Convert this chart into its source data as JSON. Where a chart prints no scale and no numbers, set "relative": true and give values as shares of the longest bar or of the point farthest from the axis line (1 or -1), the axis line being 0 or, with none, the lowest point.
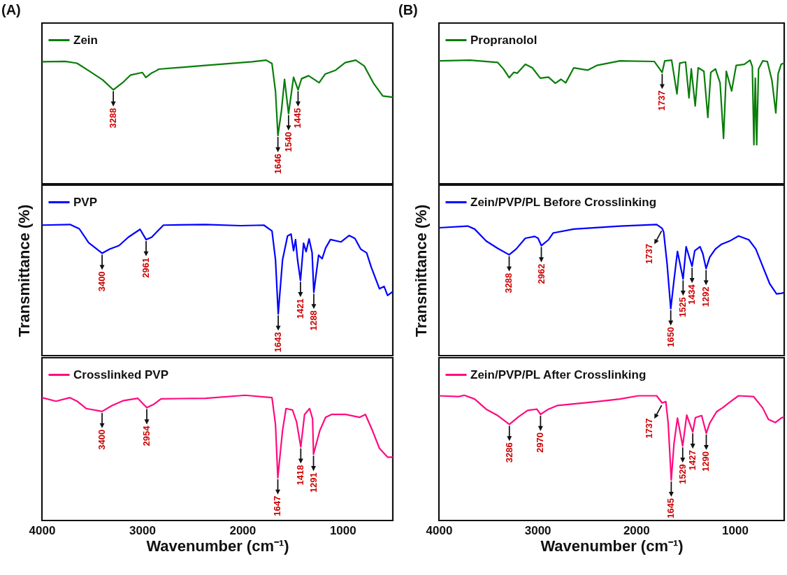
{
  "chart_data": [
    {
      "type": "line",
      "title": "(A)",
      "relative": true,
      "xlim": [
        4000,
        500
      ],
      "tick_labels": false,
      "legend": "top left",
      "x": [
        4000,
        3767,
        3650,
        3534,
        3394,
        3288,
        3185,
        3115,
        2998,
        2963,
        2905,
        2858,
        2835,
        2369,
        1903,
        1763,
        1705,
        1670,
        1646,
        1610,
        1580,
        1540,
        1490,
        1445,
        1410,
        1340,
        1235,
        1175,
        1070,
        975,
        870,
        785,
        690,
        600,
        500
      ],
      "series": [
        {
          "name": "Zein",
          "color": "#0a7d0a",
          "values": [
            0.987,
            0.99,
            0.975,
            0.915,
            0.84,
            0.76,
            0.825,
            0.88,
            0.9,
            0.86,
            0.896,
            0.915,
            0.927,
            0.957,
            0.987,
            1,
            0.972,
            0.746,
            0.39,
            0.595,
            0.844,
            0.567,
            0.862,
            0.76,
            0.85,
            0.874,
            0.817,
            0.887,
            0.919,
            0.98,
            1,
            0.953,
            0.81,
            0.71,
            0.7
          ]
        }
      ],
      "annotations": [
        {
          "text": "3288",
          "x": 3288,
          "y": 0.76
        },
        {
          "text": "1646",
          "x": 1646,
          "y": 0.39
        },
        {
          "text": "1540",
          "x": 1540,
          "y": 0.567
        },
        {
          "text": "1445",
          "x": 1445,
          "y": 0.76
        }
      ]
    },
    {
      "type": "line",
      "relative": true,
      "ylabel": "Transmittance (%)",
      "xlim": [
        4000,
        500
      ],
      "tick_labels": false,
      "legend": "top left",
      "x": [
        4000,
        3720,
        3627,
        3534,
        3400,
        3324,
        3231,
        3138,
        3021,
        2961,
        2905,
        2858,
        2788,
        2369,
        2019,
        1786,
        1705,
        1670,
        1643,
        1600,
        1550,
        1515,
        1490,
        1470,
        1450,
        1421,
        1390,
        1365,
        1335,
        1305,
        1288,
        1240,
        1205,
        1170,
        1122,
        1018,
        936,
        878,
        820,
        761,
        715,
        633,
        587,
        552,
        500
      ],
      "series": [
        {
          "name": "PVP",
          "color": "#0000ff",
          "values": [
            0.995,
            1,
            0.967,
            0.861,
            0.781,
            0.812,
            0.839,
            0.903,
            0.963,
            0.885,
            0.903,
            0.94,
            0.995,
            1,
            0.991,
            0.995,
            0.95,
            0.73,
            0.318,
            0.73,
            0.912,
            0.927,
            0.8,
            0.885,
            0.73,
            0.574,
            0.857,
            0.793,
            0.89,
            0.784,
            0.483,
            0.766,
            0.739,
            0.821,
            0.885,
            0.867,
            0.916,
            0.894,
            0.812,
            0.784,
            0.675,
            0.51,
            0.528,
            0.459,
            0.488
          ]
        }
      ],
      "annotations": [
        {
          "text": "3400",
          "x": 3400,
          "y": 0.781
        },
        {
          "text": "2961",
          "x": 2961,
          "y": 0.885
        },
        {
          "text": "1643",
          "x": 1643,
          "y": 0.318
        },
        {
          "text": "1421",
          "x": 1421,
          "y": 0.574
        },
        {
          "text": "1288",
          "x": 1288,
          "y": 0.483
        }
      ]
    },
    {
      "type": "line",
      "relative": true,
      "xlabel": "Wavenumber (cm⁻¹)",
      "xlim": [
        4000,
        500
      ],
      "xticks": [
        4000,
        3000,
        2000,
        1000
      ],
      "tick_labels": "x",
      "legend": "top left",
      "x": [
        4000,
        3860,
        3720,
        3650,
        3557,
        3400,
        3301,
        3185,
        3045,
        2954,
        2882,
        2812,
        2369,
        1973,
        1705,
        1670,
        1647,
        1600,
        1565,
        1500,
        1460,
        1418,
        1380,
        1330,
        1300,
        1291,
        1228,
        1170,
        1111,
        971,
        831,
        773,
        703,
        633,
        552,
        500
      ],
      "series": [
        {
          "name": "Crosslinked PVP",
          "color": "#ff0a80",
          "values": [
            0.981,
            0.953,
            0.981,
            0.953,
            0.894,
            0.871,
            0.918,
            0.958,
            0.976,
            0.901,
            0.929,
            0.972,
            0.976,
            1,
            0.981,
            0.765,
            0.341,
            0.718,
            0.894,
            0.882,
            0.788,
            0.588,
            0.847,
            0.894,
            0.812,
            0.529,
            0.718,
            0.824,
            0.847,
            0.847,
            0.824,
            0.847,
            0.718,
            0.576,
            0.506,
            0.506
          ]
        }
      ],
      "annotations": [
        {
          "text": "3400",
          "x": 3400,
          "y": 0.871
        },
        {
          "text": "2954",
          "x": 2954,
          "y": 0.901
        },
        {
          "text": "1647",
          "x": 1647,
          "y": 0.341
        },
        {
          "text": "1418",
          "x": 1418,
          "y": 0.588
        },
        {
          "text": "1291",
          "x": 1291,
          "y": 0.529
        }
      ]
    },
    {
      "type": "line",
      "title": "(B)",
      "relative": true,
      "xlim": [
        4000,
        500
      ],
      "tick_labels": false,
      "legend": "top left",
      "x": [
        4000,
        3685,
        3404,
        3346,
        3288,
        3241,
        3206,
        3124,
        3054,
        2972,
        2890,
        2820,
        2762,
        2715,
        2633,
        2493,
        2400,
        2166,
        1816,
        1737,
        1711,
        1641,
        1587,
        1559,
        1500,
        1465,
        1442,
        1402,
        1372,
        1314,
        1274,
        1244,
        1197,
        1150,
        1115,
        1087,
        1033,
        987,
        905,
        846,
        823,
        807,
        793,
        779,
        760,
        718,
        671,
        624,
        585,
        561,
        531,
        500
      ],
      "series": [
        {
          "name": "Propranolol",
          "color": "#0a7d0a",
          "values": [
            0.994,
            1,
            0.981,
            0.929,
            0.858,
            0.901,
            0.895,
            0.966,
            0.938,
            0.854,
            0.863,
            0.813,
            0.845,
            0.816,
            0.938,
            0.919,
            0.957,
            0.994,
            0.989,
            0.901,
            0.994,
            1,
            0.727,
            0.976,
            0.985,
            0.695,
            0.929,
            0.629,
            0.938,
            0.91,
            0.536,
            0.901,
            0.929,
            0.816,
            0.367,
            0.91,
            0.751,
            0.957,
            0.966,
            1,
            0.948,
            0.315,
            0.854,
            0.315,
            0.929,
            0.994,
            0.989,
            0.835,
            0.573,
            0.891,
            0.966,
            0.976
          ]
        }
      ],
      "annotations": [
        {
          "text": "1737",
          "x": 1737,
          "y": 0.901
        }
      ]
    },
    {
      "type": "line",
      "relative": true,
      "ylabel": "Transmittance (%)",
      "xlim": [
        4000,
        500
      ],
      "tick_labels": false,
      "legend": "top left",
      "x": [
        4000,
        3708,
        3638,
        3521,
        3404,
        3288,
        3217,
        3124,
        3030,
        2995,
        2962,
        2890,
        2843,
        2633,
        2166,
        1793,
        1737,
        1722,
        1687,
        1650,
        1617,
        1582,
        1525,
        1494,
        1434,
        1407,
        1353,
        1325,
        1292,
        1255,
        1197,
        1138,
        1045,
        963,
        858,
        788,
        718,
        648,
        578,
        531,
        500
      ],
      "series": [
        {
          "name": "Zein/PVP/PL Before Crosslinking",
          "color": "#0000ff",
          "values": [
            0.975,
            0.988,
            0.965,
            0.874,
            0.818,
            0.769,
            0.813,
            0.895,
            0.909,
            0.895,
            0.839,
            0.883,
            0.935,
            0.965,
            0.988,
            1,
            0.97,
            0.944,
            0.699,
            0.357,
            0.576,
            0.795,
            0.585,
            0.83,
            0.681,
            0.8,
            0.83,
            0.778,
            0.664,
            0.751,
            0.813,
            0.848,
            0.877,
            0.912,
            0.883,
            0.813,
            0.681,
            0.55,
            0.471,
            0.475,
            0.48
          ]
        }
      ],
      "annotations": [
        {
          "text": "3288",
          "x": 3288,
          "y": 0.769
        },
        {
          "text": "2962",
          "x": 2962,
          "y": 0.839
        },
        {
          "text": "1737",
          "x": 1737,
          "y": 0.97
        },
        {
          "text": "1650",
          "x": 1650,
          "y": 0.357
        },
        {
          "text": "1525",
          "x": 1525,
          "y": 0.585
        },
        {
          "text": "1434",
          "x": 1434,
          "y": 0.681
        },
        {
          "text": "1292",
          "x": 1292,
          "y": 0.664
        }
      ]
    },
    {
      "type": "line",
      "relative": true,
      "xlabel": "Wavenumber (cm⁻¹)",
      "xlim": [
        4000,
        500
      ],
      "xticks": [
        4000,
        3000,
        2000,
        1000
      ],
      "tick_labels": "x",
      "legend": "top left",
      "x": [
        4000,
        3801,
        3743,
        3638,
        3521,
        3404,
        3286,
        3194,
        3100,
        3007,
        2970,
        2890,
        2797,
        2400,
        2166,
        1980,
        1793,
        1737,
        1700,
        1676,
        1645,
        1617,
        1582,
        1529,
        1488,
        1427,
        1400,
        1337,
        1290,
        1255,
        1185,
        1127,
        1045,
        963,
        811,
        718,
        660,
        590,
        531,
        500
      ],
      "series": [
        {
          "name": "Zein/PVP/PL After Crosslinking",
          "color": "#ff0a80",
          "values": [
            0.996,
            0.99,
            1,
            0.97,
            0.889,
            0.838,
            0.768,
            0.828,
            0.879,
            0.889,
            0.848,
            0.889,
            0.919,
            0.949,
            0.97,
            0.996,
            0.996,
            0.939,
            0.949,
            0.778,
            0.323,
            0.616,
            0.818,
            0.596,
            0.842,
            0.707,
            0.822,
            0.838,
            0.697,
            0.778,
            0.869,
            0.899,
            0.949,
            0.996,
            0.99,
            0.899,
            0.808,
            0.782,
            0.818,
            0.828
          ]
        }
      ],
      "annotations": [
        {
          "text": "3286",
          "x": 3286,
          "y": 0.768
        },
        {
          "text": "2970",
          "x": 2970,
          "y": 0.848
        },
        {
          "text": "1737",
          "x": 1737,
          "y": 0.939
        },
        {
          "text": "1645",
          "x": 1645,
          "y": 0.323
        },
        {
          "text": "1529",
          "x": 1529,
          "y": 0.596
        },
        {
          "text": "1427",
          "x": 1427,
          "y": 0.707
        },
        {
          "text": "1290",
          "x": 1290,
          "y": 0.697
        }
      ]
    }
  ]
}
